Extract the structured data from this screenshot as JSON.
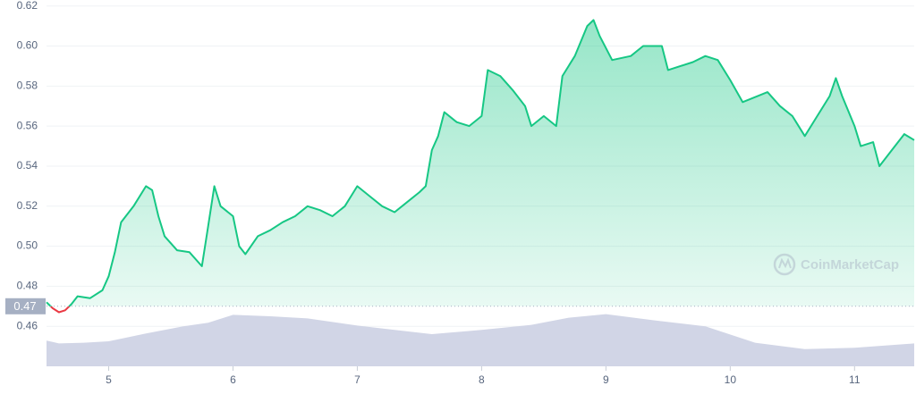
{
  "chart_data": {
    "type": "line",
    "xlim": [
      4.5,
      11.48
    ],
    "xticks": [
      5,
      6,
      7,
      8,
      9,
      10,
      11
    ],
    "ylim": [
      0.44,
      0.623
    ],
    "yticks": [
      0.46,
      0.48,
      {
        "value": 0.5,
        "label": "0.50"
      },
      0.52,
      0.54,
      0.56,
      0.58,
      {
        "value": 0.6,
        "label": "0.60"
      },
      0.62
    ],
    "y2lim": [
      0,
      100
    ],
    "grid": true,
    "baseline": {
      "value": 0.47,
      "label": "0.47"
    },
    "up_color": "#16c784",
    "down_color": "#ea3943",
    "watermark": "CoinMarketCap",
    "series": [
      {
        "color": "#16c784",
        "x": [
          4.5,
          4.55,
          4.6,
          4.65,
          4.7,
          4.75,
          4.85,
          4.95,
          5.0,
          5.05,
          5.1,
          5.2,
          5.3,
          5.35,
          5.4,
          5.45,
          5.55,
          5.65,
          5.75,
          5.8,
          5.85,
          5.9,
          6.0,
          6.05,
          6.1,
          6.2,
          6.3,
          6.4,
          6.5,
          6.6,
          6.7,
          6.8,
          6.9,
          7.0,
          7.1,
          7.2,
          7.3,
          7.4,
          7.5,
          7.55,
          7.6,
          7.65,
          7.7,
          7.8,
          7.9,
          8.0,
          8.05,
          8.15,
          8.25,
          8.35,
          8.4,
          8.5,
          8.6,
          8.65,
          8.75,
          8.85,
          8.9,
          8.95,
          9.05,
          9.2,
          9.3,
          9.45,
          9.5,
          9.7,
          9.8,
          9.9,
          10.0,
          10.1,
          10.3,
          10.4,
          10.5,
          10.6,
          10.7,
          10.8,
          10.85,
          10.9,
          11.0,
          11.05,
          11.15,
          11.2,
          11.3,
          11.4,
          11.48
        ],
        "values": [
          0.472,
          0.469,
          0.467,
          0.468,
          0.471,
          0.475,
          0.474,
          0.478,
          0.485,
          0.497,
          0.512,
          0.52,
          0.53,
          0.528,
          0.515,
          0.505,
          0.498,
          0.497,
          0.49,
          0.51,
          0.53,
          0.52,
          0.515,
          0.5,
          0.496,
          0.505,
          0.508,
          0.512,
          0.515,
          0.52,
          0.518,
          0.515,
          0.52,
          0.53,
          0.525,
          0.52,
          0.517,
          0.522,
          0.527,
          0.53,
          0.548,
          0.555,
          0.567,
          0.562,
          0.56,
          0.565,
          0.588,
          0.585,
          0.578,
          0.57,
          0.56,
          0.565,
          0.56,
          0.585,
          0.595,
          0.61,
          0.613,
          0.605,
          0.593,
          0.595,
          0.6,
          0.6,
          0.588,
          0.592,
          0.595,
          0.593,
          0.583,
          0.572,
          0.577,
          0.57,
          0.565,
          0.555,
          0.565,
          0.575,
          0.584,
          0.575,
          0.56,
          0.55,
          0.552,
          0.54,
          0.548,
          0.556,
          0.553
        ]
      },
      {
        "color": "#d1d5e6",
        "axis": "y2",
        "x": [
          4.5,
          4.55,
          4.6,
          4.8,
          5.0,
          5.3,
          5.6,
          5.8,
          6.0,
          6.3,
          6.6,
          7.0,
          7.3,
          7.6,
          8.0,
          8.4,
          8.7,
          9.0,
          9.4,
          9.8,
          10.2,
          10.6,
          11.0,
          11.48
        ],
        "values": [
          36,
          34,
          32,
          33,
          35,
          46,
          56,
          61,
          72,
          70,
          67,
          57,
          51,
          45,
          51,
          58,
          68,
          73,
          64,
          56,
          33,
          24,
          26,
          32
        ]
      }
    ]
  }
}
